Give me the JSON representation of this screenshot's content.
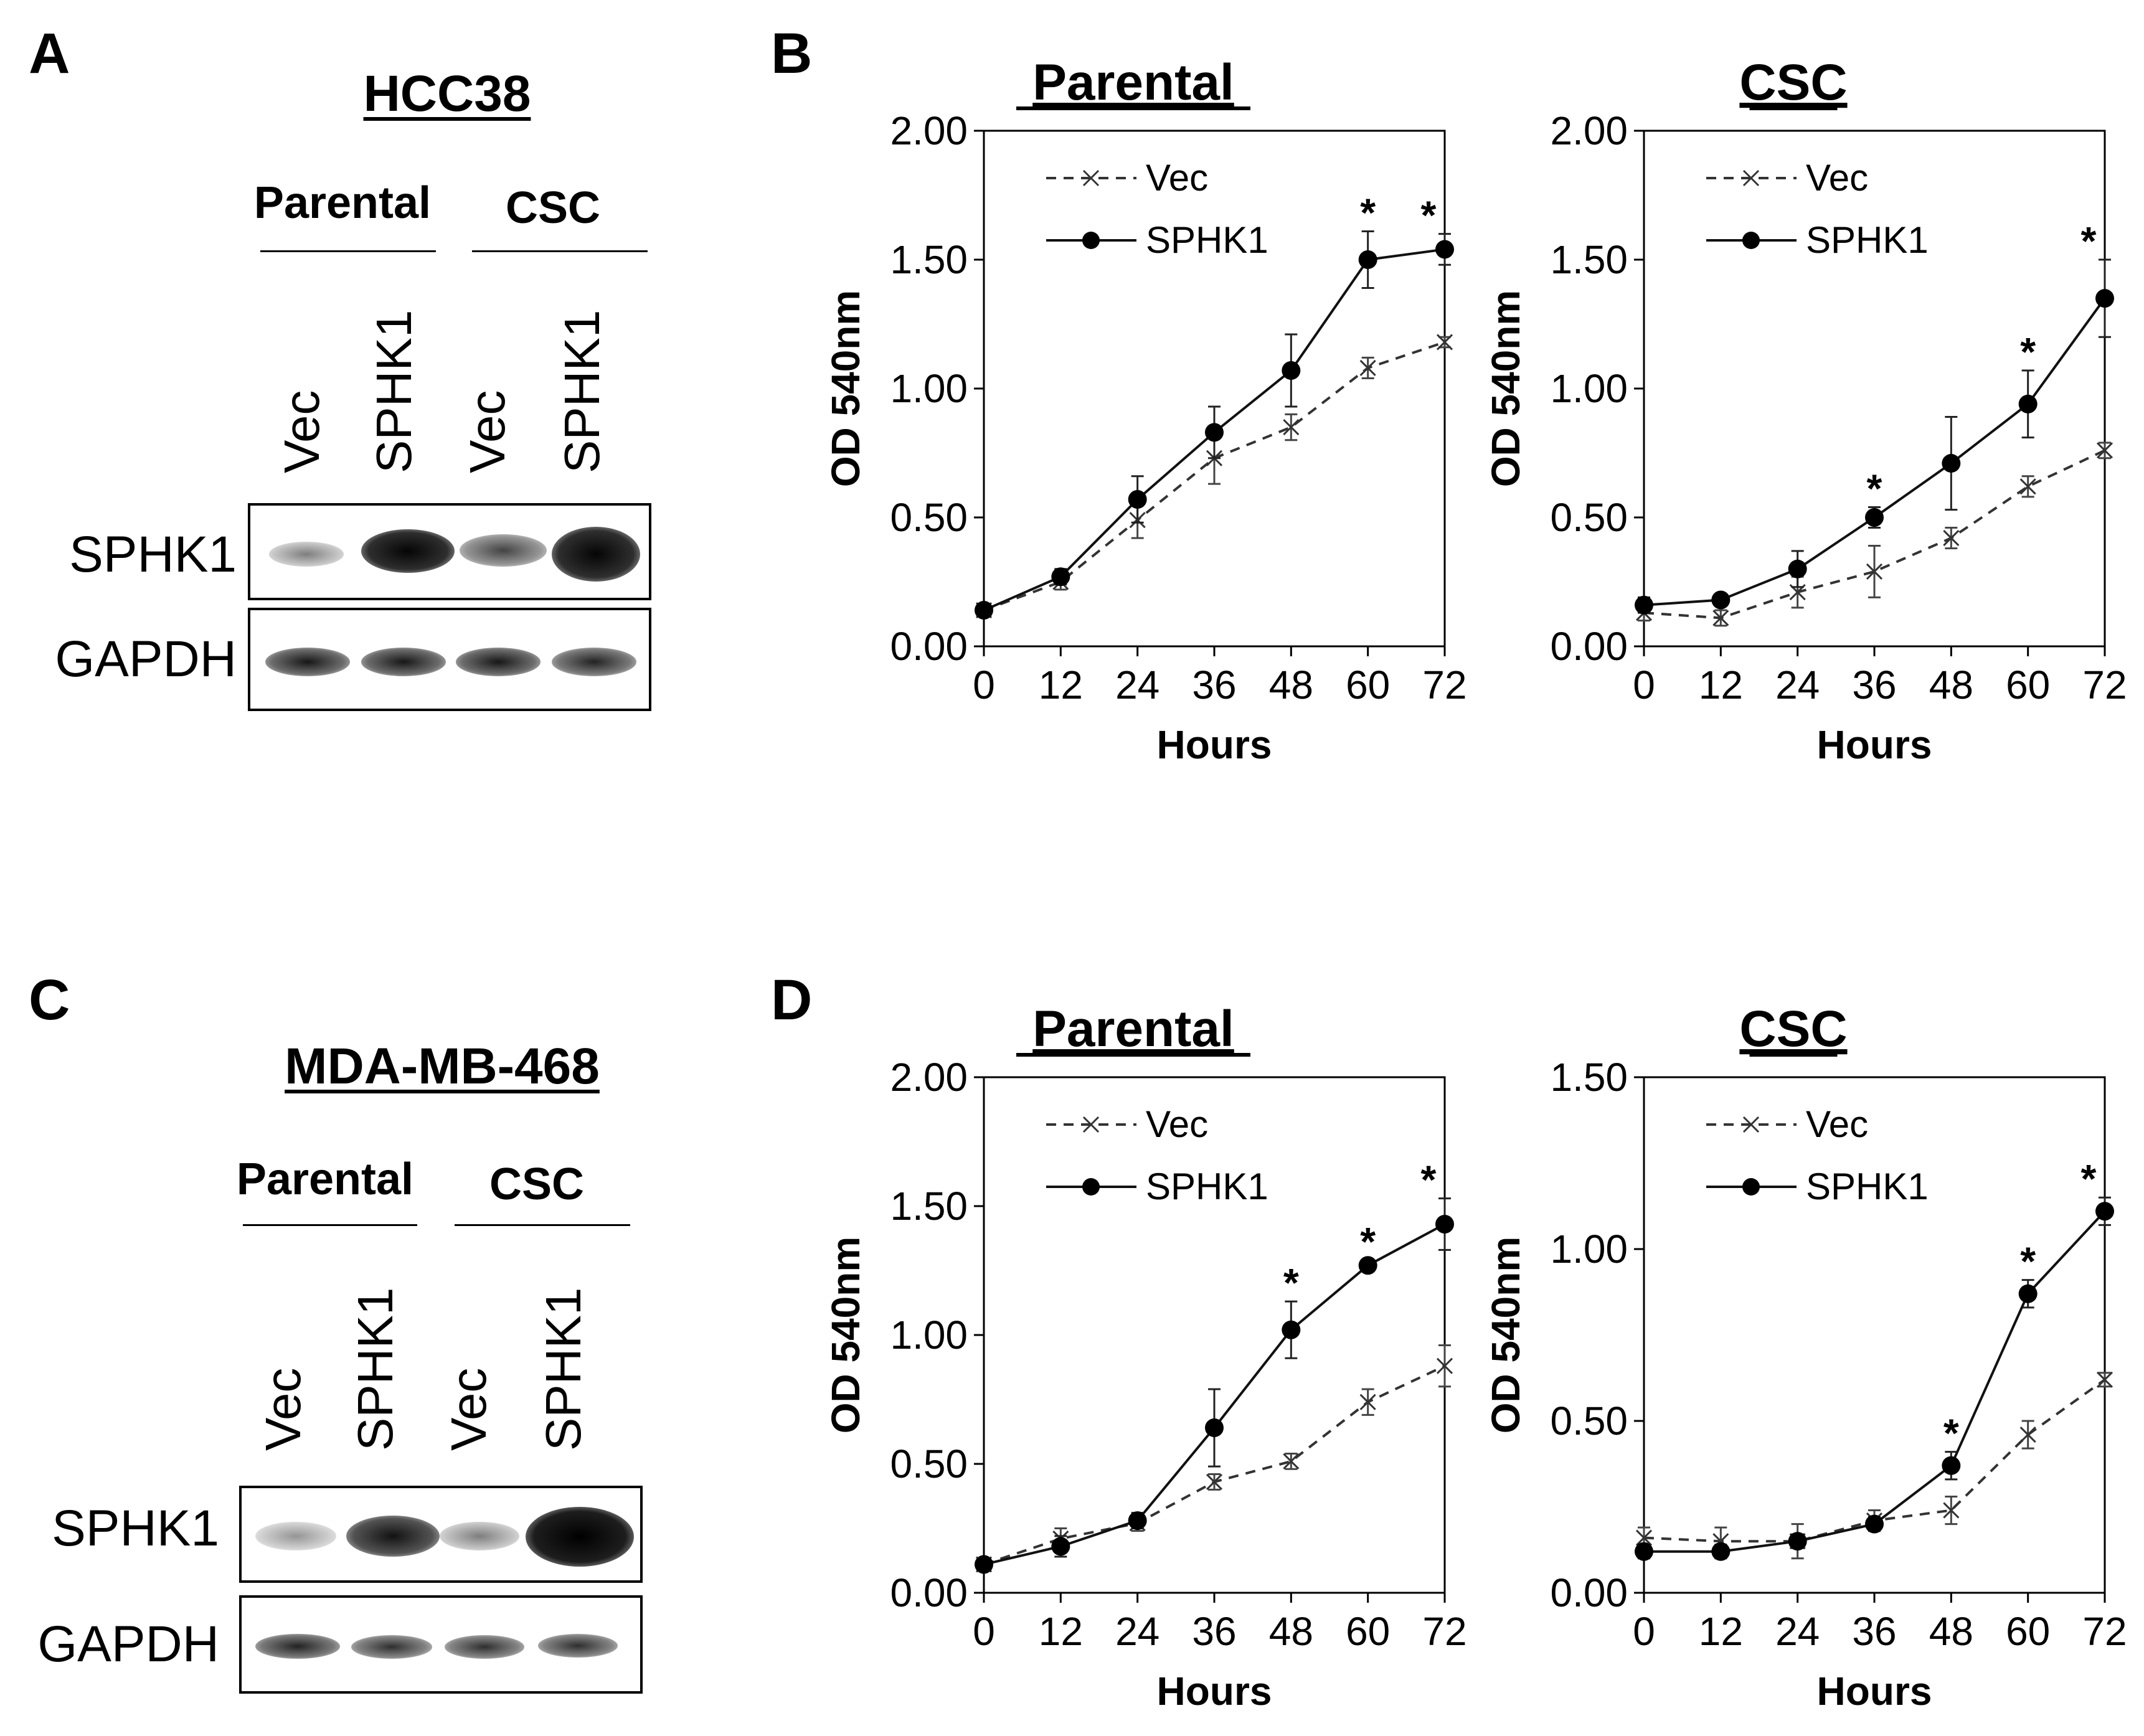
{
  "panels": {
    "A": "A",
    "B": "B",
    "C": "C",
    "D": "D"
  },
  "blots": [
    {
      "id": "A",
      "title": "HCC38",
      "groups": [
        "Parental",
        "CSC"
      ],
      "lanes": [
        "Vec",
        "SPHK1",
        "Vec",
        "SPHK1"
      ],
      "rows": [
        {
          "label": "SPHK1",
          "intensity": [
            0.45,
            1.0,
            0.65,
            1.0
          ]
        },
        {
          "label": "GAPDH",
          "intensity": [
            0.9,
            0.9,
            0.9,
            0.85
          ]
        }
      ]
    },
    {
      "id": "C",
      "title": "MDA-MB-468",
      "groups": [
        "Parental",
        "CSC"
      ],
      "lanes": [
        "Vec",
        "SPHK1",
        "Vec",
        "SPHK1"
      ],
      "rows": [
        {
          "label": "SPHK1",
          "intensity": [
            0.35,
            0.85,
            0.45,
            1.0
          ]
        },
        {
          "label": "GAPDH",
          "intensity": [
            0.85,
            0.8,
            0.8,
            0.8
          ]
        }
      ]
    }
  ],
  "chart_data": [
    {
      "id": "B-parental",
      "type": "line",
      "title": "Parental",
      "xlabel": "Hours",
      "ylabel": "OD 540nm",
      "x": [
        0,
        12,
        24,
        36,
        48,
        60,
        72
      ],
      "xticks": [
        "0",
        "12",
        "24",
        "36",
        "48",
        "60",
        "72"
      ],
      "ylim": [
        0,
        2
      ],
      "yticks": [
        "0.00",
        "0.50",
        "1.00",
        "1.50",
        "2.00"
      ],
      "legend": "top-left",
      "series": [
        {
          "name": "Vec",
          "style": "dashed-x",
          "values": [
            0.14,
            0.25,
            0.49,
            0.73,
            0.85,
            1.08,
            1.18
          ],
          "errors": [
            0.02,
            0.03,
            0.07,
            0.1,
            0.05,
            0.04,
            0.02
          ]
        },
        {
          "name": "SPHK1",
          "style": "solid-dot",
          "values": [
            0.14,
            0.27,
            0.57,
            0.83,
            1.07,
            1.5,
            1.54
          ],
          "errors": [
            0.02,
            0.03,
            0.09,
            0.1,
            0.14,
            0.11,
            0.06
          ]
        }
      ],
      "significance": [
        {
          "x": 60,
          "label": "*"
        },
        {
          "x": 72,
          "label": "*"
        }
      ]
    },
    {
      "id": "B-csc",
      "type": "line",
      "title": "CSC",
      "xlabel": "Hours",
      "ylabel": "OD 540nm",
      "x": [
        0,
        12,
        24,
        36,
        48,
        60,
        72
      ],
      "xticks": [
        "0",
        "12",
        "24",
        "36",
        "48",
        "60",
        "72"
      ],
      "ylim": [
        0,
        2
      ],
      "yticks": [
        "0.00",
        "0.50",
        "1.00",
        "1.50",
        "2.00"
      ],
      "legend": "top-left",
      "series": [
        {
          "name": "Vec",
          "style": "dashed-x",
          "values": [
            0.13,
            0.11,
            0.21,
            0.29,
            0.42,
            0.62,
            0.76
          ],
          "errors": [
            0.03,
            0.03,
            0.06,
            0.1,
            0.04,
            0.04,
            0.03
          ]
        },
        {
          "name": "SPHK1",
          "style": "solid-dot",
          "values": [
            0.16,
            0.18,
            0.3,
            0.5,
            0.71,
            0.94,
            1.35
          ],
          "errors": [
            0.03,
            0.02,
            0.07,
            0.04,
            0.18,
            0.13,
            0.15
          ]
        }
      ],
      "significance": [
        {
          "x": 36,
          "label": "*"
        },
        {
          "x": 60,
          "label": "*"
        },
        {
          "x": 72,
          "label": "*"
        }
      ]
    },
    {
      "id": "D-parental",
      "type": "line",
      "title": "Parental",
      "xlabel": "Hours",
      "ylabel": "OD 540nm",
      "x": [
        0,
        12,
        24,
        36,
        48,
        60,
        72
      ],
      "xticks": [
        "0",
        "12",
        "24",
        "36",
        "48",
        "60",
        "72"
      ],
      "ylim": [
        0,
        2
      ],
      "yticks": [
        "0.00",
        "0.50",
        "1.00",
        "1.50",
        "2.00"
      ],
      "legend": "top-left",
      "series": [
        {
          "name": "Vec",
          "style": "dashed-x",
          "values": [
            0.11,
            0.21,
            0.27,
            0.43,
            0.51,
            0.74,
            0.88
          ],
          "errors": [
            0.02,
            0.04,
            0.03,
            0.03,
            0.03,
            0.05,
            0.08
          ]
        },
        {
          "name": "SPHK1",
          "style": "solid-dot",
          "values": [
            0.11,
            0.18,
            0.28,
            0.64,
            1.02,
            1.27,
            1.43
          ],
          "errors": [
            0.02,
            0.04,
            0.03,
            0.15,
            0.11,
            0.02,
            0.1
          ]
        }
      ],
      "significance": [
        {
          "x": 48,
          "label": "*"
        },
        {
          "x": 60,
          "label": "*"
        },
        {
          "x": 72,
          "label": "*"
        }
      ]
    },
    {
      "id": "D-csc",
      "type": "line",
      "title": "CSC",
      "xlabel": "Hours",
      "ylabel": "OD 540nm",
      "x": [
        0,
        12,
        24,
        36,
        48,
        60,
        72
      ],
      "xticks": [
        "0",
        "12",
        "24",
        "36",
        "48",
        "60",
        "72"
      ],
      "ylim": [
        0,
        1.5
      ],
      "yticks": [
        "0.00",
        "0.50",
        "1.00",
        "1.50"
      ],
      "legend": "top-left",
      "series": [
        {
          "name": "Vec",
          "style": "dashed-x",
          "values": [
            0.16,
            0.15,
            0.15,
            0.21,
            0.24,
            0.46,
            0.62
          ],
          "errors": [
            0.03,
            0.04,
            0.05,
            0.03,
            0.04,
            0.04,
            0.02
          ]
        },
        {
          "name": "SPHK1",
          "style": "solid-dot",
          "values": [
            0.12,
            0.12,
            0.15,
            0.2,
            0.37,
            0.87,
            1.11
          ],
          "errors": [
            0.02,
            0.02,
            0.02,
            0.02,
            0.04,
            0.04,
            0.04
          ]
        }
      ],
      "significance": [
        {
          "x": 48,
          "label": "*"
        },
        {
          "x": 60,
          "label": "*"
        },
        {
          "x": 72,
          "label": "*"
        }
      ]
    }
  ]
}
